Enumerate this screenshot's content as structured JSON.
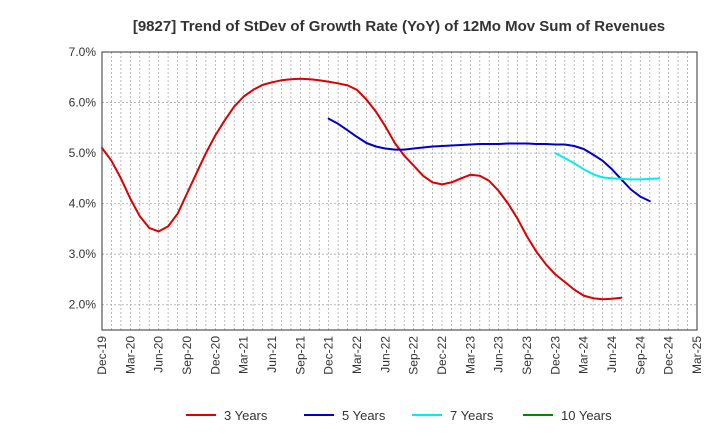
{
  "chart_data": {
    "type": "line",
    "title": "[9827]  Trend of StDev of Growth Rate (YoY) of 12Mo Mov Sum of Revenues",
    "xlabel": "",
    "ylabel": "",
    "ylim": [
      1.5,
      7.0
    ],
    "y_ticks": [
      2.0,
      3.0,
      4.0,
      5.0,
      6.0,
      7.0
    ],
    "y_tick_labels": [
      "2.0%",
      "3.0%",
      "4.0%",
      "5.0%",
      "6.0%",
      "7.0%"
    ],
    "x_tick_labels": [
      "Dec-19",
      "Mar-20",
      "Jun-20",
      "Sep-20",
      "Dec-20",
      "Mar-21",
      "Jun-21",
      "Sep-21",
      "Dec-21",
      "Mar-22",
      "Jun-22",
      "Sep-22",
      "Dec-22",
      "Mar-23",
      "Jun-23",
      "Sep-23",
      "Dec-23",
      "Mar-24",
      "Jun-24",
      "Sep-24",
      "Dec-24",
      "Mar-25"
    ],
    "grid": true,
    "legend_position": "bottom",
    "series": [
      {
        "name": "3 Years",
        "color": "#dd0000",
        "start_index": 0,
        "values": [
          5.1,
          4.85,
          4.5,
          4.1,
          3.75,
          3.52,
          3.45,
          3.55,
          3.8,
          4.2,
          4.6,
          5.0,
          5.35,
          5.65,
          5.92,
          6.12,
          6.25,
          6.35,
          6.4,
          6.44,
          6.46,
          6.47,
          6.46,
          6.44,
          6.41,
          6.38,
          6.34,
          6.25,
          6.06,
          5.82,
          5.53,
          5.2,
          4.95,
          4.75,
          4.55,
          4.42,
          4.38,
          4.42,
          4.5,
          4.57,
          4.55,
          4.45,
          4.25,
          4.0,
          3.7,
          3.35,
          3.05,
          2.8,
          2.6,
          2.45,
          2.3,
          2.18,
          2.13,
          2.11,
          2.12,
          2.14
        ]
      },
      {
        "name": "5 Years",
        "color": "#0000cc",
        "start_index": 24,
        "values": [
          5.68,
          5.58,
          5.45,
          5.32,
          5.2,
          5.13,
          5.09,
          5.07,
          5.07,
          5.09,
          5.11,
          5.13,
          5.14,
          5.15,
          5.16,
          5.17,
          5.18,
          5.18,
          5.18,
          5.19,
          5.19,
          5.19,
          5.18,
          5.18,
          5.17,
          5.17,
          5.14,
          5.08,
          4.97,
          4.85,
          4.68,
          4.48,
          4.28,
          4.14,
          4.05
        ]
      },
      {
        "name": "7 Years",
        "color": "#00eeee",
        "start_index": 48,
        "values": [
          5.0,
          4.9,
          4.8,
          4.68,
          4.58,
          4.52,
          4.5,
          4.49,
          4.48,
          4.48,
          4.49,
          4.5
        ]
      },
      {
        "name": "10 Years",
        "color": "#008800",
        "start_index": 0,
        "values": []
      }
    ]
  }
}
